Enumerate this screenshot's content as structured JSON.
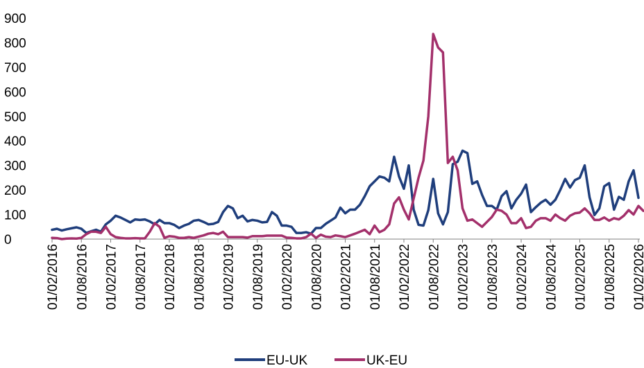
{
  "chart_data": {
    "type": "line",
    "title": "",
    "xlabel": "",
    "ylabel": "",
    "ylim": [
      0,
      900
    ],
    "yticks": [
      "0",
      "100",
      "200",
      "300",
      "400",
      "500",
      "600",
      "700",
      "800",
      "900"
    ],
    "xlim": [
      "2016-02",
      "2026-02"
    ],
    "xticks": [
      "01/02/2016",
      "01/08/2016",
      "01/02/2017",
      "01/08/2017",
      "01/02/2018",
      "01/08/2018",
      "01/02/2019",
      "01/08/2019",
      "01/02/2020",
      "01/08/2020",
      "01/02/2021",
      "01/08/2021",
      "01/02/2022",
      "01/08/2022",
      "01/02/2023",
      "01/08/2023",
      "01/02/2024",
      "01/08/2024",
      "01/02/2025",
      "01/08/2025",
      "01/02/2026"
    ],
    "grid": false,
    "legend_position": "bottom",
    "series": [
      {
        "name": "EU-UK",
        "color": "#1f3e7c",
        "points": [
          [
            "2016-02",
            38
          ],
          [
            "2016-03",
            42
          ],
          [
            "2016-04",
            35
          ],
          [
            "2016-05",
            40
          ],
          [
            "2016-06",
            44
          ],
          [
            "2016-07",
            48
          ],
          [
            "2016-08",
            42
          ],
          [
            "2016-09",
            25
          ],
          [
            "2016-10",
            32
          ],
          [
            "2016-11",
            38
          ],
          [
            "2016-12",
            30
          ],
          [
            "2017-01",
            60
          ],
          [
            "2017-02",
            75
          ],
          [
            "2017-03",
            95
          ],
          [
            "2017-04",
            88
          ],
          [
            "2017-05",
            78
          ],
          [
            "2017-06",
            68
          ],
          [
            "2017-07",
            80
          ],
          [
            "2017-08",
            78
          ],
          [
            "2017-09",
            80
          ],
          [
            "2017-10",
            72
          ],
          [
            "2017-11",
            60
          ],
          [
            "2017-12",
            78
          ],
          [
            "2018-01",
            65
          ],
          [
            "2018-02",
            65
          ],
          [
            "2018-03",
            58
          ],
          [
            "2018-04",
            45
          ],
          [
            "2018-05",
            55
          ],
          [
            "2018-06",
            62
          ],
          [
            "2018-07",
            75
          ],
          [
            "2018-08",
            78
          ],
          [
            "2018-09",
            70
          ],
          [
            "2018-10",
            60
          ],
          [
            "2018-11",
            62
          ],
          [
            "2018-12",
            70
          ],
          [
            "2019-01",
            110
          ],
          [
            "2019-02",
            135
          ],
          [
            "2019-03",
            125
          ],
          [
            "2019-04",
            85
          ],
          [
            "2019-05",
            95
          ],
          [
            "2019-06",
            72
          ],
          [
            "2019-07",
            78
          ],
          [
            "2019-08",
            75
          ],
          [
            "2019-09",
            68
          ],
          [
            "2019-10",
            70
          ],
          [
            "2019-11",
            110
          ],
          [
            "2019-12",
            95
          ],
          [
            "2020-01",
            55
          ],
          [
            "2020-02",
            55
          ],
          [
            "2020-03",
            50
          ],
          [
            "2020-04",
            25
          ],
          [
            "2020-05",
            25
          ],
          [
            "2020-06",
            28
          ],
          [
            "2020-07",
            22
          ],
          [
            "2020-08",
            45
          ],
          [
            "2020-09",
            45
          ],
          [
            "2020-10",
            62
          ],
          [
            "2020-11",
            75
          ],
          [
            "2020-12",
            88
          ],
          [
            "2021-01",
            128
          ],
          [
            "2021-02",
            105
          ],
          [
            "2021-03",
            120
          ],
          [
            "2021-04",
            120
          ],
          [
            "2021-05",
            140
          ],
          [
            "2021-06",
            175
          ],
          [
            "2021-07",
            215
          ],
          [
            "2021-08",
            235
          ],
          [
            "2021-09",
            255
          ],
          [
            "2021-10",
            250
          ],
          [
            "2021-11",
            235
          ],
          [
            "2021-12",
            335
          ],
          [
            "2022-01",
            255
          ],
          [
            "2022-02",
            205
          ],
          [
            "2022-03",
            300
          ],
          [
            "2022-04",
            120
          ],
          [
            "2022-05",
            58
          ],
          [
            "2022-06",
            55
          ],
          [
            "2022-07",
            118
          ],
          [
            "2022-08",
            245
          ],
          [
            "2022-09",
            105
          ],
          [
            "2022-10",
            60
          ],
          [
            "2022-11",
            110
          ],
          [
            "2022-12",
            305
          ],
          [
            "2023-01",
            315
          ],
          [
            "2023-02",
            360
          ],
          [
            "2023-03",
            350
          ],
          [
            "2023-04",
            225
          ],
          [
            "2023-05",
            235
          ],
          [
            "2023-06",
            180
          ],
          [
            "2023-07",
            135
          ],
          [
            "2023-08",
            135
          ],
          [
            "2023-09",
            120
          ],
          [
            "2023-10",
            175
          ],
          [
            "2023-11",
            195
          ],
          [
            "2023-12",
            125
          ],
          [
            "2024-01",
            160
          ],
          [
            "2024-02",
            185
          ],
          [
            "2024-03",
            222
          ],
          [
            "2024-04",
            110
          ],
          [
            "2024-05",
            130
          ],
          [
            "2024-06",
            148
          ],
          [
            "2024-07",
            160
          ],
          [
            "2024-08",
            140
          ],
          [
            "2024-09",
            160
          ],
          [
            "2024-10",
            200
          ],
          [
            "2024-11",
            245
          ],
          [
            "2024-12",
            210
          ],
          [
            "2025-01",
            240
          ],
          [
            "2025-02",
            250
          ],
          [
            "2025-03",
            300
          ],
          [
            "2025-04",
            170
          ],
          [
            "2025-05",
            98
          ],
          [
            "2025-06",
            125
          ],
          [
            "2025-07",
            215
          ],
          [
            "2025-08",
            228
          ],
          [
            "2025-09",
            120
          ],
          [
            "2025-10",
            172
          ],
          [
            "2025-11",
            160
          ],
          [
            "2025-12",
            235
          ],
          [
            "2026-01",
            280
          ],
          [
            "2026-02",
            168
          ]
        ]
      },
      {
        "name": "UK-EU",
        "color": "#a3306b",
        "points": [
          [
            "2016-02",
            5
          ],
          [
            "2016-03",
            4
          ],
          [
            "2016-04",
            0
          ],
          [
            "2016-05",
            2
          ],
          [
            "2016-06",
            3
          ],
          [
            "2016-07",
            2
          ],
          [
            "2016-08",
            5
          ],
          [
            "2016-09",
            20
          ],
          [
            "2016-10",
            30
          ],
          [
            "2016-11",
            30
          ],
          [
            "2016-12",
            25
          ],
          [
            "2017-01",
            50
          ],
          [
            "2017-02",
            20
          ],
          [
            "2017-03",
            8
          ],
          [
            "2017-04",
            5
          ],
          [
            "2017-05",
            3
          ],
          [
            "2017-06",
            3
          ],
          [
            "2017-07",
            4
          ],
          [
            "2017-08",
            3
          ],
          [
            "2017-09",
            3
          ],
          [
            "2017-10",
            30
          ],
          [
            "2017-11",
            65
          ],
          [
            "2017-12",
            50
          ],
          [
            "2018-01",
            5
          ],
          [
            "2018-02",
            12
          ],
          [
            "2018-03",
            10
          ],
          [
            "2018-04",
            5
          ],
          [
            "2018-05",
            5
          ],
          [
            "2018-06",
            8
          ],
          [
            "2018-07",
            5
          ],
          [
            "2018-08",
            10
          ],
          [
            "2018-09",
            15
          ],
          [
            "2018-10",
            22
          ],
          [
            "2018-11",
            25
          ],
          [
            "2018-12",
            20
          ],
          [
            "2019-01",
            30
          ],
          [
            "2019-02",
            8
          ],
          [
            "2019-03",
            8
          ],
          [
            "2019-04",
            8
          ],
          [
            "2019-05",
            8
          ],
          [
            "2019-06",
            6
          ],
          [
            "2019-07",
            12
          ],
          [
            "2019-08",
            12
          ],
          [
            "2019-09",
            12
          ],
          [
            "2019-10",
            14
          ],
          [
            "2019-11",
            14
          ],
          [
            "2019-12",
            14
          ],
          [
            "2020-01",
            14
          ],
          [
            "2020-02",
            6
          ],
          [
            "2020-03",
            5
          ],
          [
            "2020-04",
            3
          ],
          [
            "2020-05",
            3
          ],
          [
            "2020-06",
            8
          ],
          [
            "2020-07",
            22
          ],
          [
            "2020-08",
            5
          ],
          [
            "2020-09",
            18
          ],
          [
            "2020-10",
            10
          ],
          [
            "2020-11",
            8
          ],
          [
            "2020-12",
            15
          ],
          [
            "2021-01",
            12
          ],
          [
            "2021-02",
            8
          ],
          [
            "2021-03",
            15
          ],
          [
            "2021-04",
            22
          ],
          [
            "2021-05",
            30
          ],
          [
            "2021-06",
            38
          ],
          [
            "2021-07",
            20
          ],
          [
            "2021-08",
            55
          ],
          [
            "2021-09",
            28
          ],
          [
            "2021-10",
            38
          ],
          [
            "2021-11",
            60
          ],
          [
            "2021-12",
            145
          ],
          [
            "2022-01",
            170
          ],
          [
            "2022-02",
            120
          ],
          [
            "2022-03",
            80
          ],
          [
            "2022-04",
            165
          ],
          [
            "2022-05",
            250
          ],
          [
            "2022-06",
            320
          ],
          [
            "2022-07",
            500
          ],
          [
            "2022-08",
            835
          ],
          [
            "2022-09",
            780
          ],
          [
            "2022-10",
            760
          ],
          [
            "2022-11",
            310
          ],
          [
            "2022-12",
            335
          ],
          [
            "2023-01",
            280
          ],
          [
            "2023-02",
            125
          ],
          [
            "2023-03",
            75
          ],
          [
            "2023-04",
            80
          ],
          [
            "2023-05",
            65
          ],
          [
            "2023-06",
            50
          ],
          [
            "2023-07",
            70
          ],
          [
            "2023-08",
            90
          ],
          [
            "2023-09",
            120
          ],
          [
            "2023-10",
            115
          ],
          [
            "2023-11",
            100
          ],
          [
            "2023-12",
            65
          ],
          [
            "2024-01",
            65
          ],
          [
            "2024-02",
            85
          ],
          [
            "2024-03",
            45
          ],
          [
            "2024-04",
            50
          ],
          [
            "2024-05",
            75
          ],
          [
            "2024-06",
            85
          ],
          [
            "2024-07",
            85
          ],
          [
            "2024-08",
            75
          ],
          [
            "2024-09",
            100
          ],
          [
            "2024-10",
            85
          ],
          [
            "2024-11",
            75
          ],
          [
            "2024-12",
            95
          ],
          [
            "2025-01",
            105
          ],
          [
            "2025-02",
            108
          ],
          [
            "2025-03",
            125
          ],
          [
            "2025-04",
            105
          ],
          [
            "2025-05",
            78
          ],
          [
            "2025-06",
            78
          ],
          [
            "2025-07",
            88
          ],
          [
            "2025-08",
            75
          ],
          [
            "2025-09",
            85
          ],
          [
            "2025-10",
            80
          ],
          [
            "2025-11",
            95
          ],
          [
            "2025-12",
            118
          ],
          [
            "2026-01",
            100
          ],
          [
            "2026-02",
            135
          ],
          [
            "2026-03",
            115
          ]
        ]
      }
    ]
  }
}
